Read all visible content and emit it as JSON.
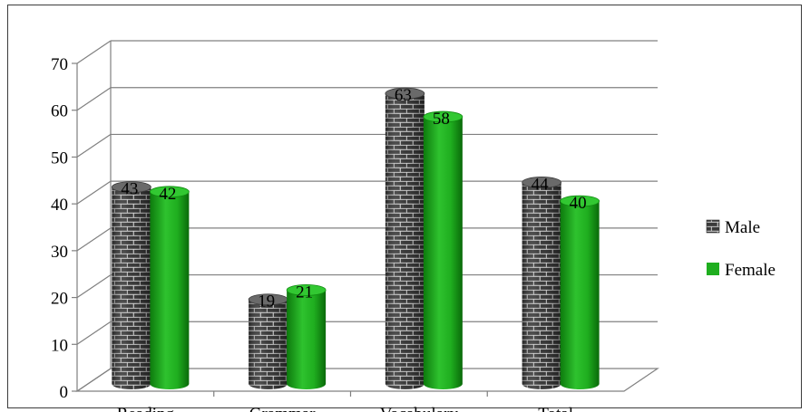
{
  "chart_data": {
    "type": "bar",
    "title": "",
    "xlabel": "",
    "ylabel": "",
    "ylim": [
      0,
      70
    ],
    "yticks": [
      0,
      10,
      20,
      30,
      40,
      50,
      60,
      70
    ],
    "categories": [
      "Reading",
      "Grammar",
      "Vocabulary",
      "Total"
    ],
    "series": [
      {
        "name": "Male",
        "values": [
          43,
          19,
          63,
          44
        ],
        "color": "#4a4a4a",
        "pattern": "brick"
      },
      {
        "name": "Female",
        "values": [
          42,
          21,
          58,
          40
        ],
        "color": "#1fae1f",
        "pattern": "solid"
      }
    ],
    "data_labels": true,
    "grid": true,
    "legend": "right",
    "style": "3d-cylinder"
  }
}
